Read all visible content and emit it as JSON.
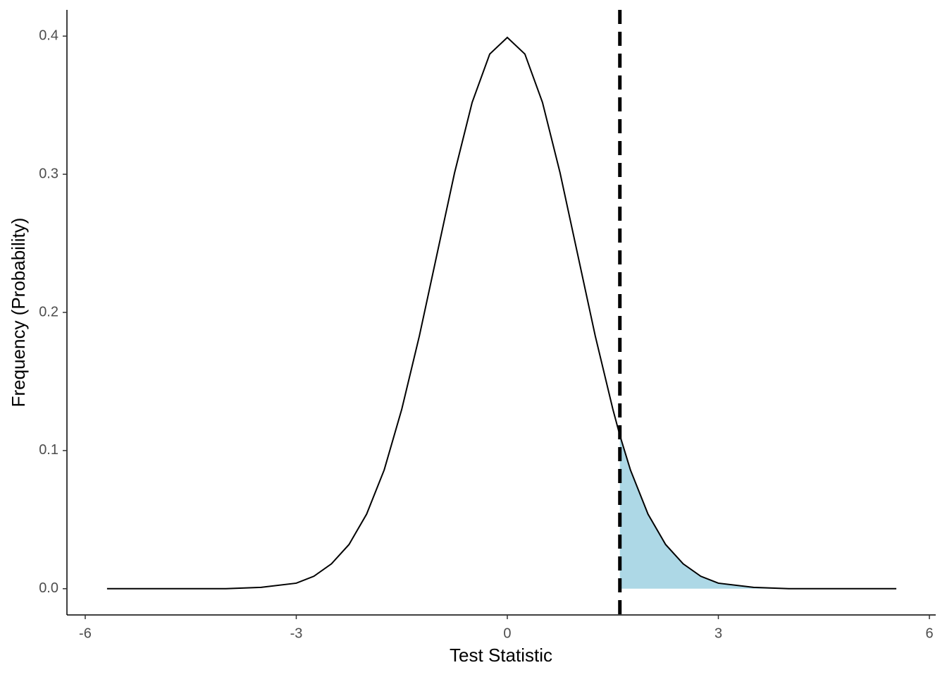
{
  "chart_data": {
    "type": "line",
    "x_label": "Test Statistic",
    "y_label": "Frequency (Probability)",
    "x": [
      -5.69,
      -5,
      -4.5,
      -4,
      -3.5,
      -3,
      -2.75,
      -2.5,
      -2.25,
      -2,
      -1.75,
      -1.5,
      -1.25,
      -1,
      -0.75,
      -0.5,
      -0.25,
      0,
      0.25,
      0.5,
      0.75,
      1,
      1.25,
      1.5,
      1.6,
      1.75,
      2,
      2.25,
      2.5,
      2.75,
      3,
      3.5,
      4,
      4.5,
      5,
      5.53
    ],
    "values": [
      0,
      0,
      0,
      0,
      0.001,
      0.004,
      0.009,
      0.018,
      0.032,
      0.054,
      0.086,
      0.13,
      0.183,
      0.242,
      0.301,
      0.352,
      0.387,
      0.399,
      0.387,
      0.352,
      0.301,
      0.242,
      0.183,
      0.13,
      0.111,
      0.086,
      0.054,
      0.032,
      0.018,
      0.009,
      0.004,
      0.001,
      0,
      0,
      0,
      0
    ],
    "color": "#000000",
    "shade_color": "#add8e6",
    "vline": 1.6,
    "xlim": [
      -6.26,
      6.09
    ],
    "ylim": [
      -0.019,
      0.419
    ],
    "xticks": [
      -6,
      -3,
      0,
      3,
      6
    ],
    "yticks": [
      {
        "value": 0,
        "label": "0.0"
      },
      0.1,
      0.2,
      0.3,
      0.4
    ],
    "grid": false
  }
}
